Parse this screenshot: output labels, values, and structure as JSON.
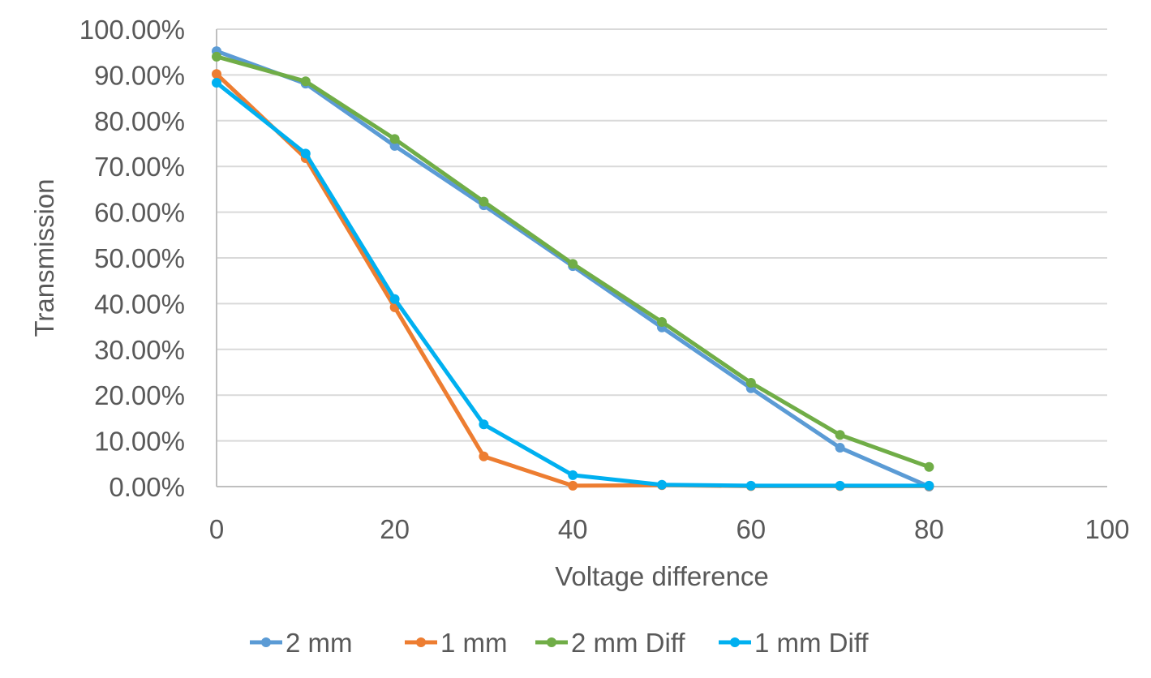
{
  "chart_data": {
    "type": "line",
    "title": "",
    "xlabel": "Voltage difference",
    "ylabel": "Transmission",
    "xlim": [
      0,
      100
    ],
    "ylim": [
      0,
      100
    ],
    "x_ticks": [
      0,
      20,
      40,
      60,
      80,
      100
    ],
    "x_tick_labels": [
      "0",
      "20",
      "40",
      "60",
      "80",
      "100"
    ],
    "y_ticks": [
      0,
      10,
      20,
      30,
      40,
      50,
      60,
      70,
      80,
      90,
      100
    ],
    "y_tick_labels": [
      "0.00%",
      "10.00%",
      "20.00%",
      "30.00%",
      "40.00%",
      "50.00%",
      "60.00%",
      "70.00%",
      "80.00%",
      "90.00%",
      "100.00%"
    ],
    "grid": true,
    "legend_position": "bottom",
    "x": [
      0,
      10,
      20,
      30,
      40,
      50,
      60,
      70,
      80
    ],
    "series": [
      {
        "name": "2 mm",
        "color": "#5B9BD5",
        "values": [
          95.2,
          88.1,
          74.5,
          61.5,
          48.2,
          34.8,
          21.5,
          8.5,
          0.0
        ]
      },
      {
        "name": "1 mm",
        "color": "#ED7D31",
        "values": [
          90.2,
          71.8,
          39.2,
          6.6,
          0.2,
          0.3,
          0.1,
          0.1,
          0.1
        ]
      },
      {
        "name": "2 mm Diff",
        "color": "#70AD47",
        "values": [
          94.0,
          88.6,
          76.0,
          62.3,
          48.7,
          36.0,
          22.7,
          11.3,
          4.3
        ]
      },
      {
        "name": "1 mm Diff",
        "color": "#00B0F0",
        "values": [
          88.3,
          72.8,
          41.0,
          13.6,
          2.5,
          0.4,
          0.2,
          0.2,
          0.2
        ]
      }
    ]
  }
}
